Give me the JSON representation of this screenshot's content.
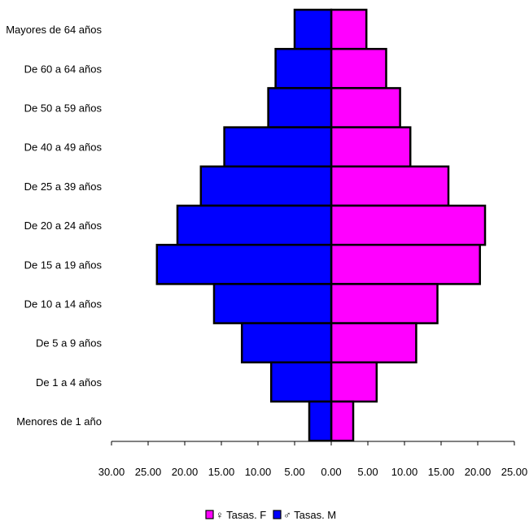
{
  "chart_data": {
    "type": "bar",
    "orientation": "horizontal",
    "layout": "population-pyramid",
    "categories": [
      "Mayores de 64 años",
      "De 60 a 64 años",
      "De 50 a 59 años",
      "De 40 a 49 años",
      "De 25 a 39 años",
      "De 20 a 24 años",
      "De 15 a 19 años",
      "De 10 a 14 años",
      "De 5 a 9 años",
      "De 1 a 4 años",
      "Menores de 1 año"
    ],
    "series": [
      {
        "name": "♀ Tasas. F",
        "side": "right",
        "color": "#ff00ff",
        "values": [
          4.8,
          7.5,
          9.4,
          10.8,
          16.0,
          21.0,
          20.3,
          14.5,
          11.6,
          6.2,
          3.0
        ]
      },
      {
        "name": "♂ Tasas. M",
        "side": "left",
        "color": "#0000ff",
        "values": [
          5.0,
          7.6,
          8.6,
          14.6,
          17.8,
          21.0,
          23.8,
          16.0,
          12.2,
          8.2,
          3.0
        ]
      }
    ],
    "xlim": [
      -30,
      25
    ],
    "x_ticks": [
      "30.00",
      "25.00",
      "20.00",
      "15.00",
      "10.00",
      "5.00",
      "0.00",
      "5.00",
      "10.00",
      "15.00",
      "20.00",
      "25.00"
    ],
    "x_tick_values": [
      -30,
      -25,
      -20,
      -15,
      -10,
      -5,
      0,
      5,
      10,
      15,
      20,
      25
    ],
    "grid": false,
    "legend_position": "bottom-center",
    "title": "",
    "xlabel": "",
    "ylabel": ""
  }
}
